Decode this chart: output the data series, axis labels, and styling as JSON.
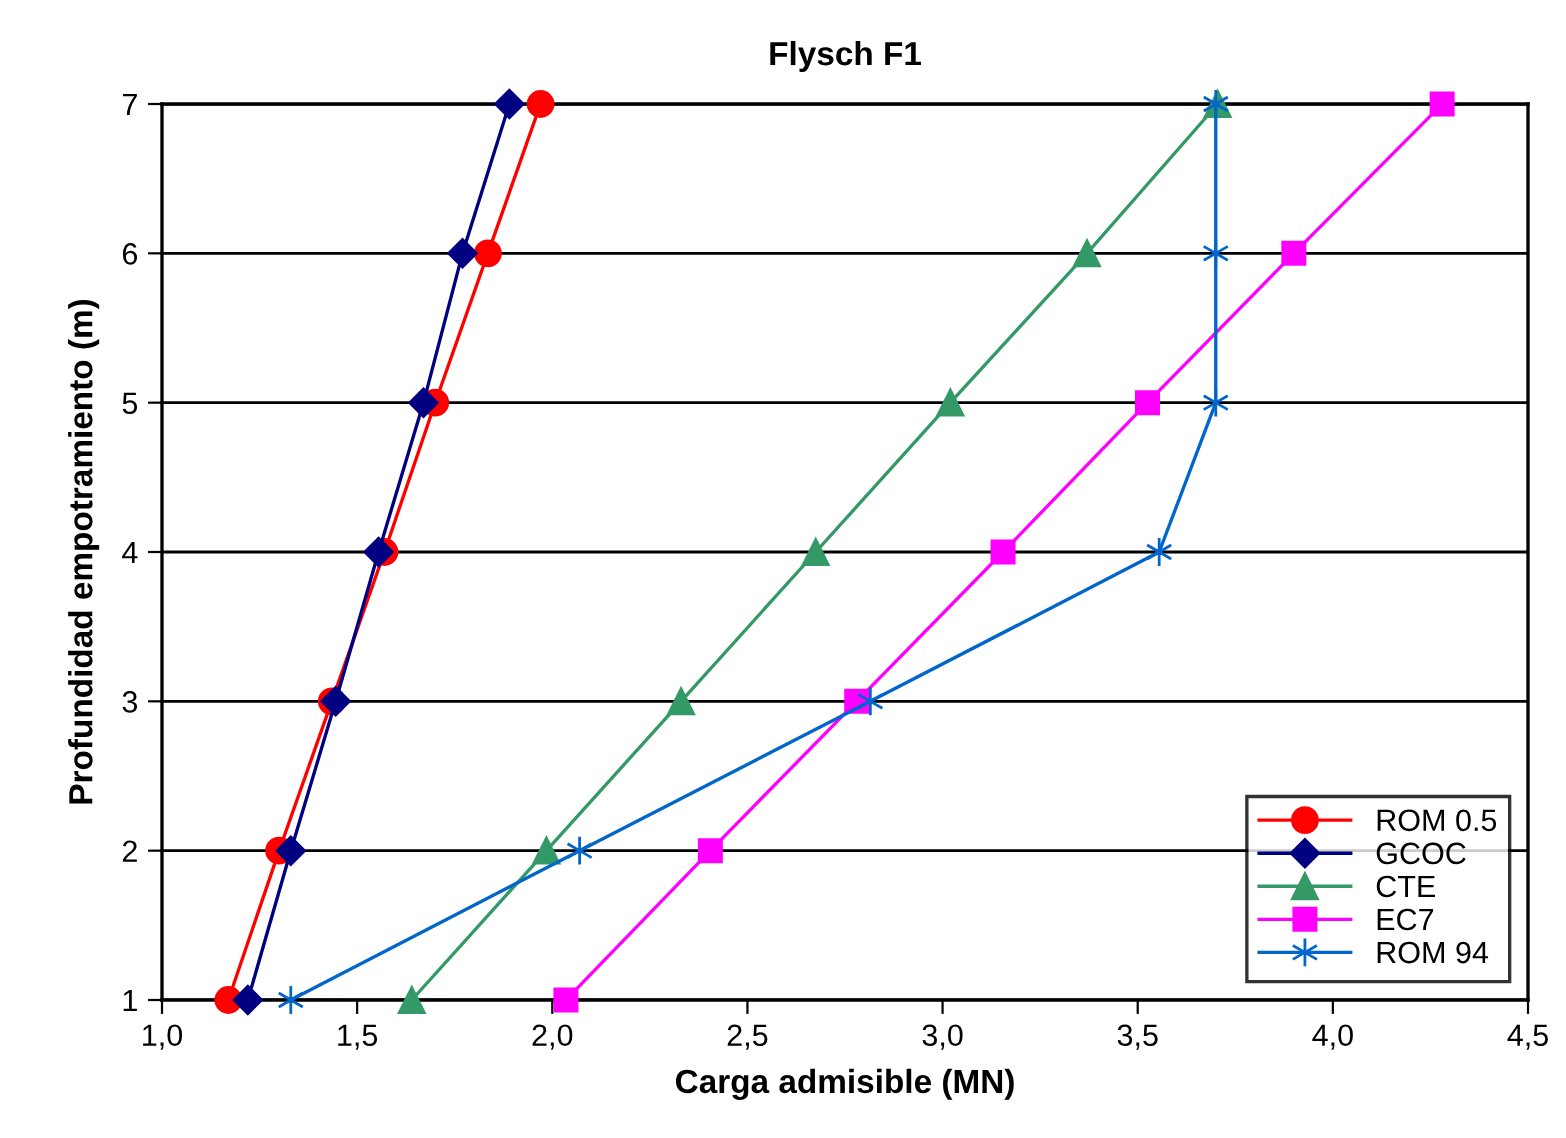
{
  "chart_data": {
    "type": "line",
    "title": "Flysch F1",
    "xlabel": "Carga admisible (MN)",
    "ylabel": "Profundidad empotramiento (m)",
    "series": [
      {
        "name": "ROM 0.5",
        "color": "#ff0000",
        "marker": "circle",
        "x": [
          1.17,
          1.3,
          1.435,
          1.57,
          1.7,
          1.835,
          1.97
        ],
        "values": [
          1,
          2,
          3,
          4,
          5,
          6,
          7
        ]
      },
      {
        "name": "GCOC",
        "color": "#000080",
        "marker": "diamond",
        "x": [
          1.22,
          1.33,
          1.445,
          1.555,
          1.67,
          1.77,
          1.89
        ],
        "values": [
          1,
          2,
          3,
          4,
          5,
          6,
          7
        ]
      },
      {
        "name": "CTE",
        "color": "#339966",
        "marker": "triangle",
        "x": [
          1.64,
          1.985,
          2.33,
          2.675,
          3.02,
          3.37,
          3.705
        ],
        "values": [
          1,
          2,
          3,
          4,
          5,
          6,
          7
        ]
      },
      {
        "name": "EC7",
        "color": "#ff00ff",
        "marker": "square",
        "x": [
          2.035,
          2.405,
          2.78,
          3.155,
          3.525,
          3.9,
          4.28
        ],
        "values": [
          1,
          2,
          3,
          4,
          5,
          6,
          7
        ]
      },
      {
        "name": "ROM 94",
        "color": "#0066cc",
        "marker": "cross",
        "x": [
          1.33,
          2.07,
          2.815,
          3.555,
          3.7,
          3.7,
          3.7
        ],
        "values": [
          1,
          2,
          3,
          4,
          5,
          6,
          7
        ]
      }
    ],
    "xlim": [
      1.0,
      4.5
    ],
    "xticks": [
      {
        "value": 1.0,
        "label": "1,0"
      },
      {
        "value": 1.5,
        "label": "1,5"
      },
      {
        "value": 2.0,
        "label": "2,0"
      },
      {
        "value": 2.5,
        "label": "2,5"
      },
      {
        "value": 3.0,
        "label": "3,0"
      },
      {
        "value": 3.5,
        "label": "3,5"
      },
      {
        "value": 4.0,
        "label": "4,0"
      },
      {
        "value": 4.5,
        "label": "4,5"
      }
    ],
    "ylim": [
      1,
      7
    ],
    "yticks": [
      1,
      2,
      3,
      4,
      5,
      6,
      7
    ],
    "grid": "y",
    "legend": "bottom right",
    "line_style": "solid"
  }
}
